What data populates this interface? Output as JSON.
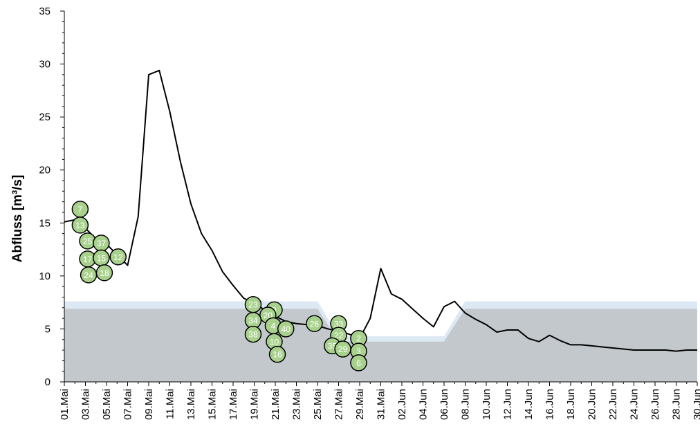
{
  "chart_data": {
    "type": "line",
    "title": "",
    "xlabel": "",
    "ylabel": "Abfluss [m³/s]",
    "ylim": [
      0,
      35
    ],
    "yticks": [
      0,
      5,
      10,
      15,
      20,
      25,
      30,
      35
    ],
    "x_tick_labels": [
      "01.Mai",
      "03.Mai",
      "05.Mai",
      "07.Mai",
      "09.Mai",
      "11.Mai",
      "13.Mai",
      "15.Mai",
      "17.Mai",
      "19.Mai",
      "21.Mai",
      "23.Mai",
      "25.Mai",
      "27.Mai",
      "29.Mai",
      "31.Mai",
      "02.Jun",
      "04.Jun",
      "06.Jun",
      "08.Jun",
      "10.Jun",
      "12.Jun",
      "14.Jun",
      "16.Jun",
      "18.Jun",
      "20.Jun",
      "22.Jun",
      "24.Jun",
      "26.Jun",
      "28.Jun",
      "30.Jun"
    ],
    "discharge_series": {
      "x": [
        "01.Mai",
        "02.Mai",
        "03.Mai",
        "04.Mai",
        "05.Mai",
        "06.Mai",
        "07.Mai",
        "08.Mai",
        "09.Mai",
        "10.Mai",
        "11.Mai",
        "12.Mai",
        "13.Mai",
        "14.Mai",
        "15.Mai",
        "16.Mai",
        "17.Mai",
        "18.Mai",
        "19.Mai",
        "20.Mai",
        "21.Mai",
        "22.Mai",
        "23.Mai",
        "24.Mai",
        "25.Mai",
        "26.Mai",
        "27.Mai",
        "28.Mai",
        "29.Mai",
        "30.Mai",
        "31.Mai",
        "01.Jun",
        "02.Jun",
        "03.Jun",
        "04.Jun",
        "05.Jun",
        "06.Jun",
        "07.Jun",
        "08.Jun",
        "09.Jun",
        "10.Jun",
        "11.Jun",
        "12.Jun",
        "13.Jun",
        "14.Jun",
        "15.Jun",
        "16.Jun",
        "17.Jun",
        "18.Jun",
        "19.Jun",
        "20.Jun",
        "21.Jun",
        "22.Jun",
        "23.Jun",
        "24.Jun",
        "25.Jun",
        "26.Jun",
        "27.Jun",
        "28.Jun",
        "29.Jun",
        "30.Jun"
      ],
      "values": [
        15.1,
        15.3,
        14.5,
        13.5,
        13.0,
        12.0,
        11.0,
        15.6,
        29.0,
        29.4,
        25.5,
        20.8,
        16.8,
        14.0,
        12.4,
        10.4,
        9.1,
        7.9,
        7.4,
        6.8,
        6.2,
        5.7,
        5.5,
        5.4,
        5.3,
        5.0,
        4.8,
        4.5,
        4.1,
        6.0,
        10.7,
        8.3,
        7.8,
        6.9,
        6.0,
        5.2,
        7.1,
        7.6,
        6.5,
        5.9,
        5.4,
        4.7,
        4.9,
        4.9,
        4.1,
        3.8,
        4.4,
        3.9,
        3.5,
        3.5,
        3.4,
        3.3,
        3.2,
        3.1,
        3.0,
        3.0,
        3.0,
        3.0,
        2.9,
        3.0,
        3.0
      ]
    },
    "threshold_band": {
      "x": [
        "01.Mai",
        "25.Mai",
        "27.Mai",
        "29.Mai",
        "06.Jun",
        "08.Jun",
        "30.Jun"
      ],
      "lower": [
        6.9,
        6.9,
        3.8,
        3.8,
        3.8,
        6.9,
        6.9
      ],
      "upper": [
        7.6,
        7.6,
        4.3,
        4.3,
        4.3,
        7.6,
        7.6
      ],
      "band_color": "#dce8f4",
      "area_color": "#c3c8cc"
    },
    "line_color": "#000000",
    "marker_color": "#a9d18e",
    "markers": [
      {
        "label": "7",
        "x": "02.5 Mai",
        "y": 16.3
      },
      {
        "label": "13",
        "x": "02.5 Mai",
        "y": 14.8
      },
      {
        "label": "25",
        "x": "03.2 Mai",
        "y": 13.3
      },
      {
        "label": "37",
        "x": "04.5 Mai",
        "y": 13.1
      },
      {
        "label": "17",
        "x": "03.2 Mai",
        "y": 11.6
      },
      {
        "label": "15",
        "x": "04.5 Mai",
        "y": 11.7
      },
      {
        "label": "12",
        "x": "06.1 Mai",
        "y": 11.8
      },
      {
        "label": "24",
        "x": "03.3 Mai",
        "y": 10.1
      },
      {
        "label": "18",
        "x": "04.8 Mai",
        "y": 10.3
      },
      {
        "label": "23",
        "x": "18.9 Mai",
        "y": 7.3
      },
      {
        "label": "9",
        "x": "20.9 Mai",
        "y": 6.8
      },
      {
        "label": "20",
        "x": "20.3 Mai",
        "y": 6.3
      },
      {
        "label": "34",
        "x": "18.9 Mai",
        "y": 5.8
      },
      {
        "label": "4",
        "x": "20.8 Mai",
        "y": 5.3
      },
      {
        "label": "40",
        "x": "22.0 Mai",
        "y": 5.0
      },
      {
        "label": "26",
        "x": "24.7 Mai",
        "y": 5.5
      },
      {
        "label": "33",
        "x": "27.0 Mai",
        "y": 5.5
      },
      {
        "label": "38",
        "x": "18.9 Mai",
        "y": 4.5
      },
      {
        "label": "22",
        "x": "27.0 Mai",
        "y": 4.4
      },
      {
        "label": "2",
        "x": "28.9 Mai",
        "y": 4.1
      },
      {
        "label": "10",
        "x": "20.9 Mai",
        "y": 3.8
      },
      {
        "label": "35",
        "x": "26.4 Mai",
        "y": 3.4
      },
      {
        "label": "29",
        "x": "27.4 Mai",
        "y": 3.1
      },
      {
        "label": "3",
        "x": "28.9 Mai",
        "y": 2.9
      },
      {
        "label": "16",
        "x": "21.2 Mai",
        "y": 2.6
      },
      {
        "label": "6",
        "x": "28.9 Mai",
        "y": 1.8
      }
    ]
  }
}
